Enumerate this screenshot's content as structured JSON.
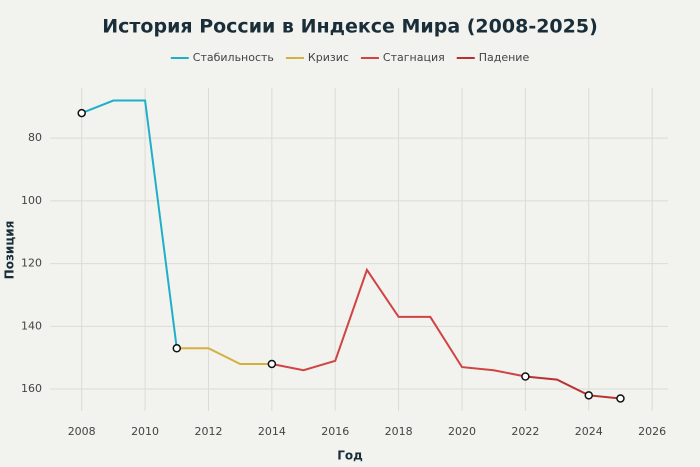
{
  "chart_data": {
    "type": "line",
    "title": "История России в Индексе Мира (2008-2025)",
    "x_label": "Год",
    "y_label": "Позиция",
    "xlim": [
      2007,
      2026.5
    ],
    "xticks": [
      2008,
      2010,
      2012,
      2014,
      2016,
      2018,
      2020,
      2022,
      2024,
      2026
    ],
    "ylim": [
      64,
      167
    ],
    "yticks": [
      80,
      100,
      120,
      140,
      160
    ],
    "y_reversed": true,
    "grid": true,
    "series": [
      {
        "name": "Стабильность",
        "color": "#1fb0c8",
        "x": [
          2008,
          2009,
          2010,
          2011
        ],
        "values": [
          72,
          68,
          68,
          147
        ]
      },
      {
        "name": "Кризис",
        "color": "#d4b040",
        "x": [
          2011,
          2012,
          2013,
          2014
        ],
        "values": [
          147,
          147,
          152,
          152
        ]
      },
      {
        "name": "Стагнация",
        "color": "#d04444",
        "x": [
          2014,
          2015,
          2016,
          2017,
          2018,
          2019,
          2020,
          2021,
          2022
        ],
        "values": [
          152,
          154,
          151,
          122,
          137,
          137,
          153,
          154,
          156
        ]
      },
      {
        "name": "Падение",
        "color": "#b83232",
        "x": [
          2022,
          2023,
          2024,
          2025
        ],
        "values": [
          156,
          157,
          162,
          163
        ]
      }
    ],
    "highlight_years": [
      2008,
      2011,
      2014,
      2022,
      2024,
      2025
    ]
  }
}
